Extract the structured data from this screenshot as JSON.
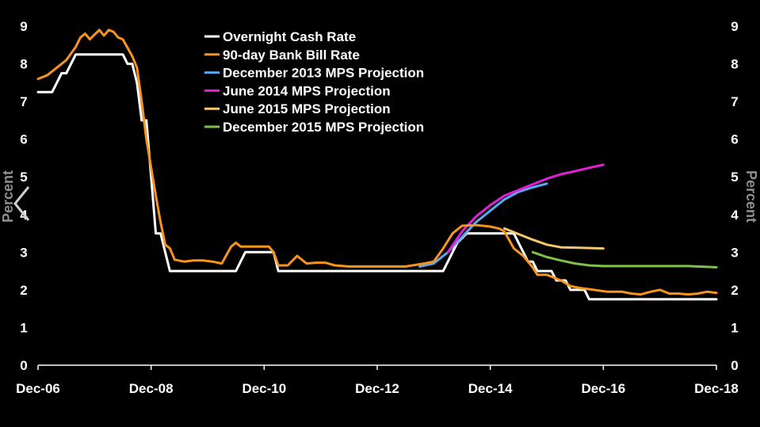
{
  "chart_data": {
    "type": "line",
    "title": "",
    "ylabel_left": "Percent",
    "ylabel_right": "Percent",
    "xlim": [
      "2006-12",
      "2018-12"
    ],
    "ylim": [
      0,
      9
    ],
    "x_ticks": [
      "Dec-06",
      "Dec-08",
      "Dec-10",
      "Dec-12",
      "Dec-14",
      "Dec-16",
      "Dec-18"
    ],
    "y_ticks": [
      "0",
      "1",
      "2",
      "3",
      "4",
      "5",
      "6",
      "7",
      "8",
      "9"
    ],
    "grid": false,
    "legend_position": "top-center",
    "series": [
      {
        "name": "Overnight Cash Rate",
        "color": "#ffffff",
        "points": [
          [
            "2006-12",
            7.25
          ],
          [
            "2007-03",
            7.25
          ],
          [
            "2007-04",
            7.5
          ],
          [
            "2007-05",
            7.75
          ],
          [
            "2007-06",
            7.75
          ],
          [
            "2007-07",
            8.0
          ],
          [
            "2007-08",
            8.25
          ],
          [
            "2008-06",
            8.25
          ],
          [
            "2008-07",
            8.0
          ],
          [
            "2008-08",
            8.0
          ],
          [
            "2008-09",
            7.5
          ],
          [
            "2008-10",
            6.5
          ],
          [
            "2008-11",
            6.5
          ],
          [
            "2008-12",
            5.0
          ],
          [
            "2009-01",
            3.5
          ],
          [
            "2009-02",
            3.5
          ],
          [
            "2009-04",
            2.5
          ],
          [
            "2010-06",
            2.5
          ],
          [
            "2010-07",
            2.75
          ],
          [
            "2010-08",
            3.0
          ],
          [
            "2011-02",
            3.0
          ],
          [
            "2011-03",
            2.5
          ],
          [
            "2014-02",
            2.5
          ],
          [
            "2014-03",
            2.75
          ],
          [
            "2014-04",
            3.0
          ],
          [
            "2014-05",
            3.25
          ],
          [
            "2014-07",
            3.5
          ],
          [
            "2015-05",
            3.5
          ],
          [
            "2015-06",
            3.25
          ],
          [
            "2015-07",
            3.0
          ],
          [
            "2015-08",
            2.75
          ],
          [
            "2015-09",
            2.75
          ],
          [
            "2015-10",
            2.5
          ],
          [
            "2015-11",
            2.5
          ],
          [
            "2015-12",
            2.5
          ],
          [
            "2016-01",
            2.5
          ],
          [
            "2016-02",
            2.25
          ],
          [
            "2016-04",
            2.25
          ],
          [
            "2016-05",
            2.0
          ],
          [
            "2016-08",
            2.0
          ],
          [
            "2016-09",
            1.75
          ],
          [
            "2018-12",
            1.75
          ]
        ]
      },
      {
        "name": "90-day Bank Bill Rate",
        "color": "#f7941d",
        "points": [
          [
            "2006-12",
            7.6
          ],
          [
            "2007-02",
            7.7
          ],
          [
            "2007-04",
            7.9
          ],
          [
            "2007-06",
            8.1
          ],
          [
            "2007-08",
            8.45
          ],
          [
            "2007-09",
            8.7
          ],
          [
            "2007-10",
            8.8
          ],
          [
            "2007-11",
            8.65
          ],
          [
            "2008-01",
            8.9
          ],
          [
            "2008-02",
            8.75
          ],
          [
            "2008-03",
            8.9
          ],
          [
            "2008-04",
            8.85
          ],
          [
            "2008-05",
            8.7
          ],
          [
            "2008-06",
            8.65
          ],
          [
            "2008-08",
            8.2
          ],
          [
            "2008-09",
            7.9
          ],
          [
            "2008-10",
            7.0
          ],
          [
            "2008-11",
            6.0
          ],
          [
            "2009-01",
            4.5
          ],
          [
            "2009-02",
            3.8
          ],
          [
            "2009-03",
            3.2
          ],
          [
            "2009-04",
            3.1
          ],
          [
            "2009-05",
            2.8
          ],
          [
            "2009-07",
            2.75
          ],
          [
            "2009-09",
            2.78
          ],
          [
            "2009-11",
            2.78
          ],
          [
            "2010-01",
            2.75
          ],
          [
            "2010-03",
            2.7
          ],
          [
            "2010-05",
            3.15
          ],
          [
            "2010-06",
            3.25
          ],
          [
            "2010-07",
            3.15
          ],
          [
            "2010-10",
            3.15
          ],
          [
            "2011-01",
            3.15
          ],
          [
            "2011-02",
            3.0
          ],
          [
            "2011-03",
            2.65
          ],
          [
            "2011-05",
            2.65
          ],
          [
            "2011-07",
            2.9
          ],
          [
            "2011-09",
            2.7
          ],
          [
            "2011-11",
            2.72
          ],
          [
            "2012-01",
            2.72
          ],
          [
            "2012-03",
            2.65
          ],
          [
            "2012-06",
            2.62
          ],
          [
            "2013-06",
            2.62
          ],
          [
            "2013-10",
            2.7
          ],
          [
            "2013-12",
            2.75
          ],
          [
            "2014-02",
            3.1
          ],
          [
            "2014-04",
            3.5
          ],
          [
            "2014-05",
            3.6
          ],
          [
            "2014-06",
            3.7
          ],
          [
            "2014-09",
            3.72
          ],
          [
            "2014-12",
            3.68
          ],
          [
            "2015-02",
            3.62
          ],
          [
            "2015-03",
            3.55
          ],
          [
            "2015-05",
            3.1
          ],
          [
            "2015-07",
            2.9
          ],
          [
            "2015-09",
            2.6
          ],
          [
            "2015-10",
            2.4
          ],
          [
            "2015-12",
            2.4
          ],
          [
            "2016-03",
            2.25
          ],
          [
            "2016-05",
            2.1
          ],
          [
            "2016-07",
            2.05
          ],
          [
            "2016-10",
            2.0
          ],
          [
            "2017-01",
            1.95
          ],
          [
            "2017-04",
            1.95
          ],
          [
            "2017-06",
            1.9
          ],
          [
            "2017-08",
            1.88
          ],
          [
            "2017-10",
            1.95
          ],
          [
            "2017-12",
            2.0
          ],
          [
            "2018-02",
            1.9
          ],
          [
            "2018-04",
            1.9
          ],
          [
            "2018-06",
            1.88
          ],
          [
            "2018-08",
            1.9
          ],
          [
            "2018-10",
            1.95
          ],
          [
            "2018-12",
            1.92
          ]
        ]
      },
      {
        "name": "December 2013 MPS Projection",
        "color": "#5aa9f0",
        "points": [
          [
            "2013-09",
            2.62
          ],
          [
            "2013-12",
            2.7
          ],
          [
            "2014-03",
            3.0
          ],
          [
            "2014-06",
            3.4
          ],
          [
            "2014-09",
            3.8
          ],
          [
            "2014-12",
            4.1
          ],
          [
            "2015-03",
            4.4
          ],
          [
            "2015-06",
            4.6
          ],
          [
            "2015-09",
            4.72
          ],
          [
            "2015-12",
            4.82
          ]
        ]
      },
      {
        "name": "June 2014 MPS Projection",
        "color": "#e020d8",
        "points": [
          [
            "2014-03",
            3.0
          ],
          [
            "2014-06",
            3.55
          ],
          [
            "2014-09",
            3.95
          ],
          [
            "2014-12",
            4.25
          ],
          [
            "2015-03",
            4.5
          ],
          [
            "2015-06",
            4.65
          ],
          [
            "2015-09",
            4.8
          ],
          [
            "2015-12",
            4.95
          ],
          [
            "2016-03",
            5.07
          ],
          [
            "2016-06",
            5.15
          ],
          [
            "2016-09",
            5.24
          ],
          [
            "2016-12",
            5.32
          ]
        ]
      },
      {
        "name": "June 2015 MPS Projection",
        "color": "#f5c86e",
        "points": [
          [
            "2015-03",
            3.63
          ],
          [
            "2015-06",
            3.48
          ],
          [
            "2015-09",
            3.33
          ],
          [
            "2015-12",
            3.2
          ],
          [
            "2016-03",
            3.13
          ],
          [
            "2016-06",
            3.12
          ],
          [
            "2016-09",
            3.11
          ],
          [
            "2016-12",
            3.1
          ]
        ]
      },
      {
        "name": "December 2015 MPS Projection",
        "color": "#7dc24a",
        "points": [
          [
            "2015-09",
            3.0
          ],
          [
            "2015-12",
            2.87
          ],
          [
            "2016-03",
            2.78
          ],
          [
            "2016-06",
            2.7
          ],
          [
            "2016-09",
            2.65
          ],
          [
            "2016-12",
            2.63
          ],
          [
            "2017-06",
            2.63
          ],
          [
            "2018-06",
            2.63
          ],
          [
            "2018-12",
            2.6
          ]
        ]
      }
    ]
  }
}
